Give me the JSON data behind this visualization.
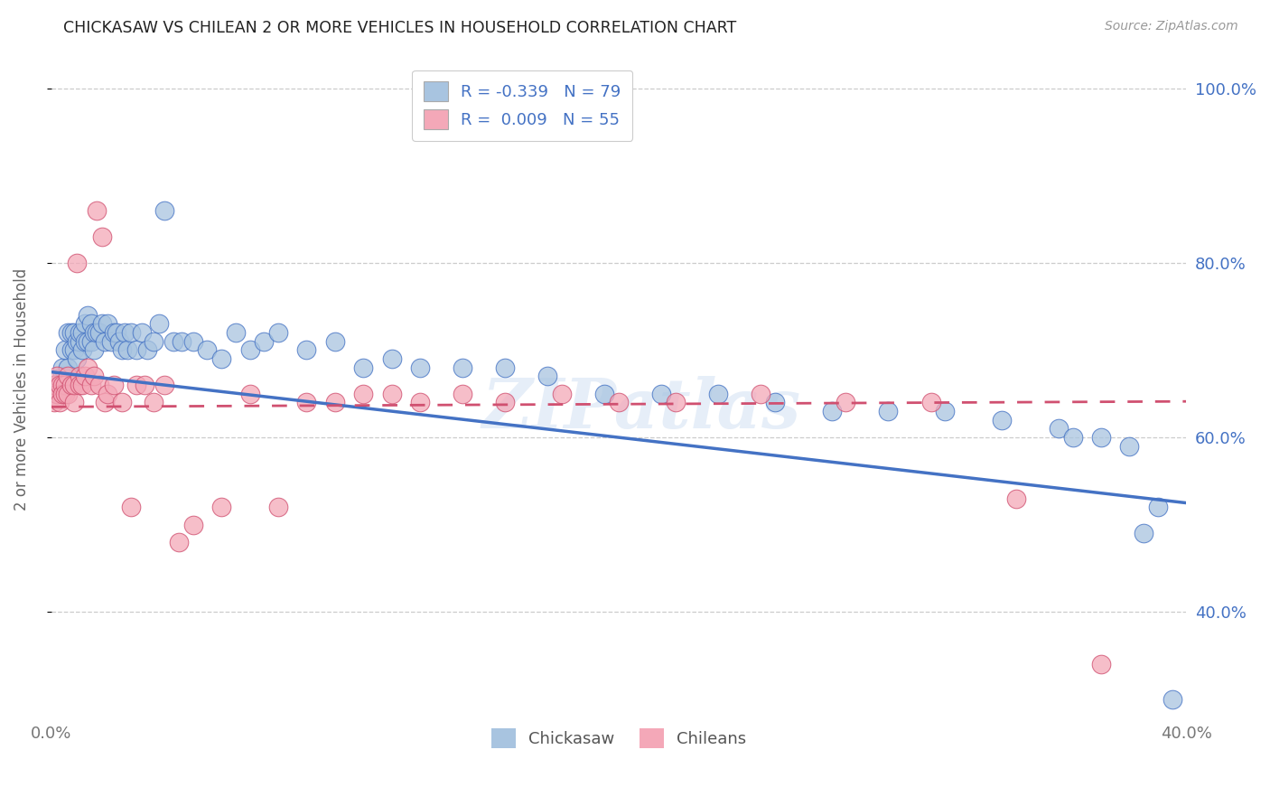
{
  "title": "CHICKASAW VS CHILEAN 2 OR MORE VEHICLES IN HOUSEHOLD CORRELATION CHART",
  "source": "Source: ZipAtlas.com",
  "ylabel": "2 or more Vehicles in Household",
  "x_min": 0.0,
  "x_max": 0.4,
  "y_min": 0.28,
  "y_max": 1.03,
  "x_ticks": [
    0.0,
    0.05,
    0.1,
    0.15,
    0.2,
    0.25,
    0.3,
    0.35,
    0.4
  ],
  "y_ticks": [
    0.4,
    0.6,
    0.8,
    1.0
  ],
  "y_tick_labels": [
    "40.0%",
    "60.0%",
    "80.0%",
    "100.0%"
  ],
  "legend_label1": "Chickasaw",
  "legend_label2": "Chileans",
  "R1": "-0.339",
  "N1": "79",
  "R2": "0.009",
  "N2": "55",
  "color_blue": "#a8c4e0",
  "color_pink": "#f4a8b8",
  "line_color_blue": "#4472c4",
  "line_color_pink": "#d05070",
  "text_color": "#4472c4",
  "watermark": "ZIPatlas",
  "chickasaw_x": [
    0.001,
    0.002,
    0.003,
    0.004,
    0.004,
    0.005,
    0.005,
    0.006,
    0.006,
    0.007,
    0.007,
    0.007,
    0.008,
    0.008,
    0.009,
    0.009,
    0.01,
    0.01,
    0.011,
    0.011,
    0.012,
    0.012,
    0.013,
    0.013,
    0.014,
    0.014,
    0.015,
    0.015,
    0.016,
    0.017,
    0.018,
    0.019,
    0.02,
    0.021,
    0.022,
    0.023,
    0.024,
    0.025,
    0.026,
    0.027,
    0.028,
    0.03,
    0.032,
    0.034,
    0.036,
    0.038,
    0.04,
    0.043,
    0.046,
    0.05,
    0.055,
    0.06,
    0.065,
    0.07,
    0.075,
    0.08,
    0.09,
    0.1,
    0.11,
    0.12,
    0.13,
    0.145,
    0.16,
    0.175,
    0.195,
    0.215,
    0.235,
    0.255,
    0.275,
    0.295,
    0.315,
    0.335,
    0.355,
    0.36,
    0.37,
    0.38,
    0.385,
    0.39,
    0.395
  ],
  "chickasaw_y": [
    0.66,
    0.65,
    0.66,
    0.67,
    0.68,
    0.66,
    0.7,
    0.72,
    0.68,
    0.72,
    0.7,
    0.66,
    0.72,
    0.7,
    0.71,
    0.69,
    0.71,
    0.72,
    0.7,
    0.72,
    0.73,
    0.71,
    0.71,
    0.74,
    0.73,
    0.71,
    0.72,
    0.7,
    0.72,
    0.72,
    0.73,
    0.71,
    0.73,
    0.71,
    0.72,
    0.72,
    0.71,
    0.7,
    0.72,
    0.7,
    0.72,
    0.7,
    0.72,
    0.7,
    0.71,
    0.73,
    0.86,
    0.71,
    0.71,
    0.71,
    0.7,
    0.69,
    0.72,
    0.7,
    0.71,
    0.72,
    0.7,
    0.71,
    0.68,
    0.69,
    0.68,
    0.68,
    0.68,
    0.67,
    0.65,
    0.65,
    0.65,
    0.64,
    0.63,
    0.63,
    0.63,
    0.62,
    0.61,
    0.6,
    0.6,
    0.59,
    0.49,
    0.52,
    0.3
  ],
  "chilean_x": [
    0.001,
    0.001,
    0.002,
    0.002,
    0.003,
    0.003,
    0.004,
    0.004,
    0.005,
    0.005,
    0.006,
    0.006,
    0.007,
    0.008,
    0.008,
    0.009,
    0.01,
    0.01,
    0.011,
    0.012,
    0.013,
    0.014,
    0.015,
    0.016,
    0.017,
    0.018,
    0.019,
    0.02,
    0.022,
    0.025,
    0.028,
    0.03,
    0.033,
    0.036,
    0.04,
    0.045,
    0.05,
    0.06,
    0.07,
    0.08,
    0.09,
    0.1,
    0.11,
    0.12,
    0.13,
    0.145,
    0.16,
    0.18,
    0.2,
    0.22,
    0.25,
    0.28,
    0.31,
    0.34,
    0.37
  ],
  "chilean_y": [
    0.64,
    0.66,
    0.65,
    0.67,
    0.64,
    0.66,
    0.66,
    0.65,
    0.66,
    0.65,
    0.67,
    0.65,
    0.66,
    0.64,
    0.66,
    0.8,
    0.67,
    0.66,
    0.66,
    0.67,
    0.68,
    0.66,
    0.67,
    0.86,
    0.66,
    0.83,
    0.64,
    0.65,
    0.66,
    0.64,
    0.52,
    0.66,
    0.66,
    0.64,
    0.66,
    0.48,
    0.5,
    0.52,
    0.65,
    0.52,
    0.64,
    0.64,
    0.65,
    0.65,
    0.64,
    0.65,
    0.64,
    0.65,
    0.64,
    0.64,
    0.65,
    0.64,
    0.64,
    0.53,
    0.34
  ]
}
